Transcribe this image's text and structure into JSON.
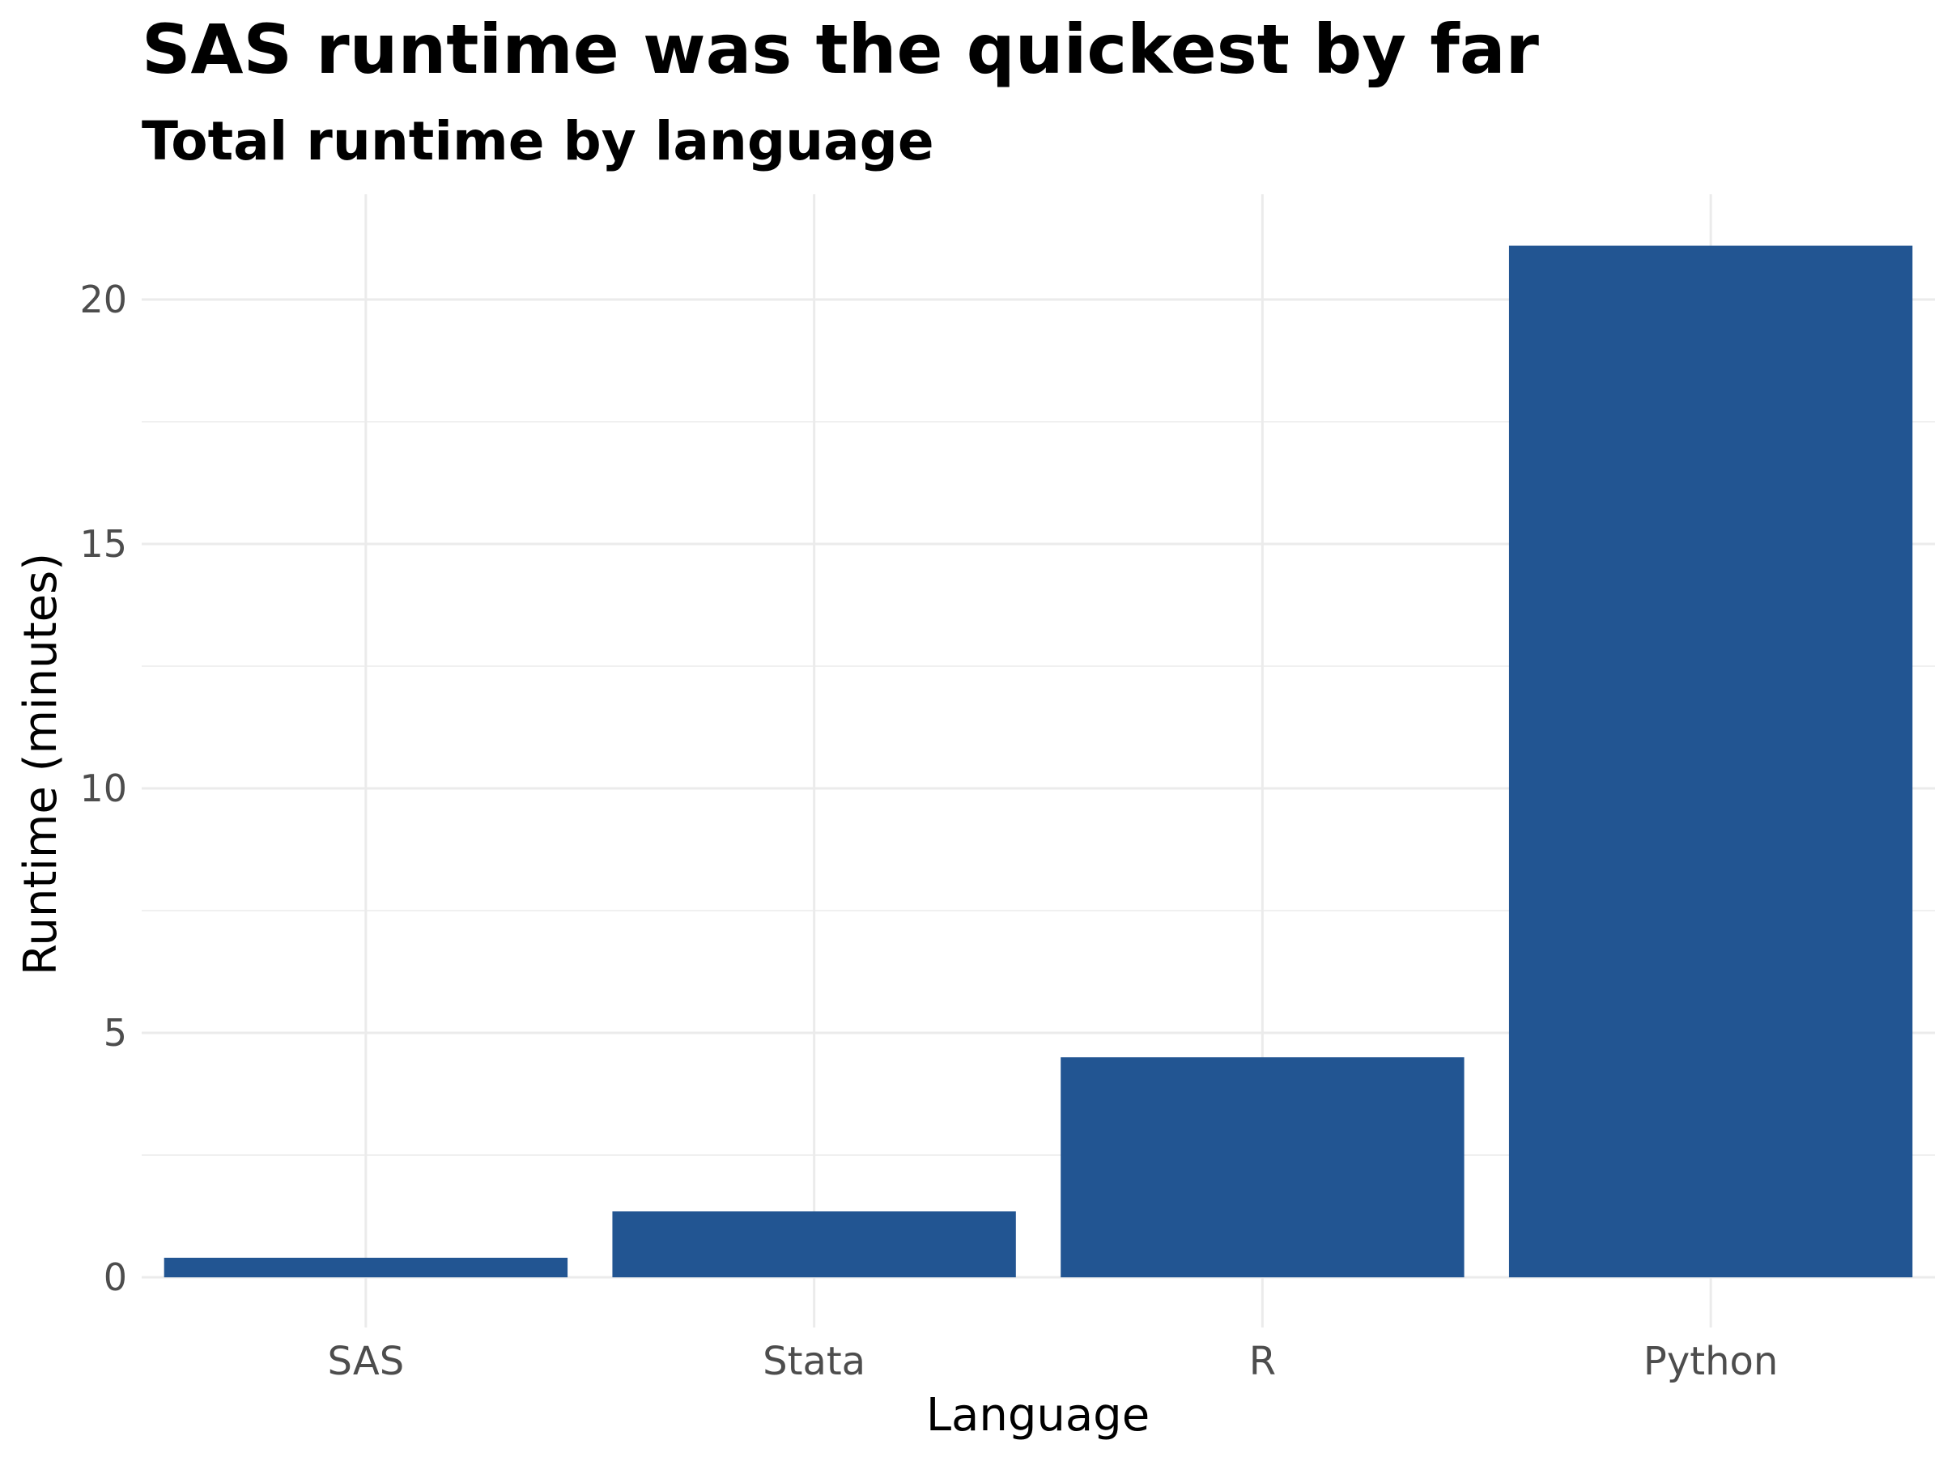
{
  "chart_data": {
    "type": "bar",
    "title": "SAS runtime was the quickest by far",
    "subtitle": "Total runtime by language",
    "xlabel": "Language",
    "ylabel": "Runtime (minutes)",
    "categories": [
      "SAS",
      "Stata",
      "R",
      "Python"
    ],
    "values": [
      0.4,
      1.35,
      4.5,
      21.1
    ],
    "ylim": [
      0,
      22
    ],
    "yticks": [
      0,
      5,
      10,
      15,
      20
    ],
    "y_minor_ticks": [
      2.5,
      7.5,
      12.5,
      17.5
    ],
    "grid": true,
    "legend": "none",
    "colors": {
      "bar": "#225592",
      "grid": "#ebebeb",
      "tick_text": "#4d4d4d",
      "title": "#000000"
    }
  }
}
